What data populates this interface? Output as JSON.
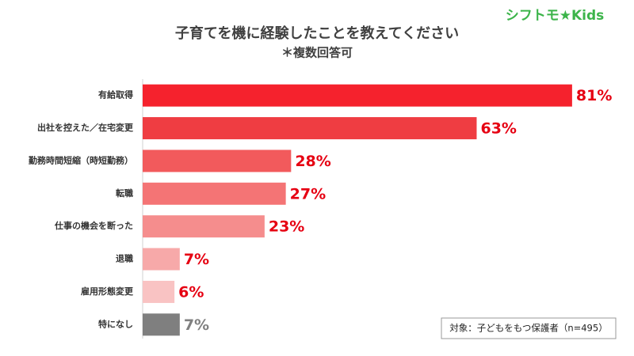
{
  "logo": "シフトモ★Kids",
  "note": "対象：子どもをもつ保護者（n=495）",
  "chart_data": {
    "type": "hbar",
    "title": "子育てを機に経験したことを教えてください",
    "subtitle": "＊複数回答可",
    "categories": [
      "有給取得",
      "出社を控えた／在宅変更",
      "勤務時間短縮（時短勤務）",
      "転職",
      "仕事の機会を断った",
      "退職",
      "雇用形態変更",
      "特になし"
    ],
    "values": [
      81,
      63,
      28,
      27,
      23,
      7,
      6,
      7
    ],
    "value_labels": [
      "81%",
      "63%",
      "28%",
      "27%",
      "23%",
      "7%",
      "6%",
      "7%"
    ],
    "colors": [
      "#f5222d",
      "#ef3d42",
      "#f25a5c",
      "#f47475",
      "#f58d8d",
      "#f7a9a9",
      "#f9c3c3",
      "#7f7f7f"
    ],
    "value_label_colors": [
      "#e60012",
      "#e60012",
      "#e60012",
      "#e60012",
      "#e60012",
      "#e60012",
      "#e60012",
      "#808080"
    ]
  }
}
